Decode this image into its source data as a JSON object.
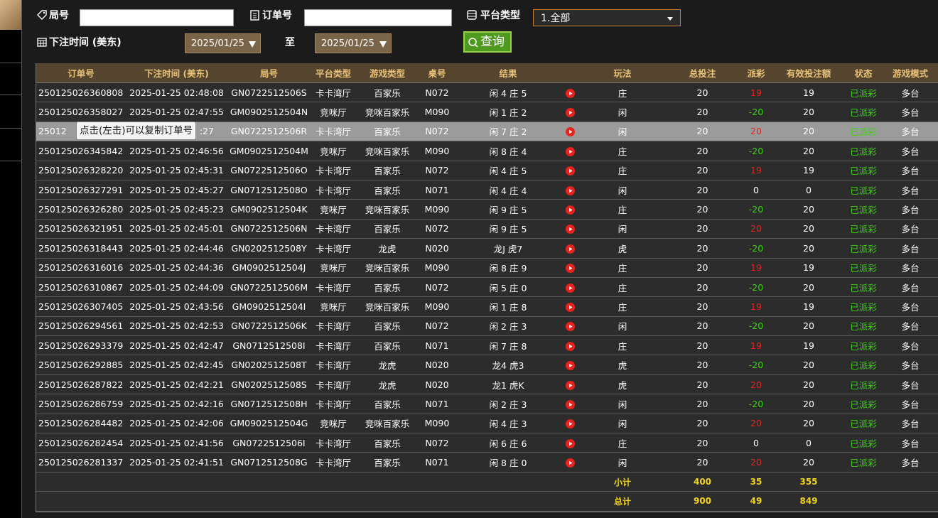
{
  "filters": {
    "round_label": "局号",
    "order_label": "订单号",
    "platform_label": "平台类型",
    "platform_value": "1.全部",
    "time_label": "下注时间 (美东)",
    "date_from": "2025/01/25",
    "to_label": "至",
    "date_to": "2025/01/25",
    "query_button": "查询"
  },
  "table": {
    "columns": [
      "订单号",
      "下注时间 (美东)",
      "局号",
      "平台类型",
      "游戏类型",
      "桌号",
      "结果",
      "玩法",
      "总投注",
      "派彩",
      "有效投注额",
      "状态",
      "游戏模式"
    ],
    "rows": [
      [
        "250125026360808",
        "2025-01-25 02:48:08",
        "GN0722512506S",
        "卡卡湾厅",
        "百家乐",
        "N072",
        "闲 4 庄 5",
        "庄",
        20,
        19,
        19,
        "已派彩",
        "多台"
      ],
      [
        "250125026358027",
        "2025-01-25 02:47:55",
        "GM0902512504N",
        "竞咪厅",
        "竞咪百家乐",
        "M090",
        "闲 1 庄 2",
        "闲",
        20,
        -20,
        20,
        "已派彩",
        "多台"
      ],
      [
        "25012",
        ":27",
        "GN0722512506R",
        "卡卡湾厅",
        "百家乐",
        "N072",
        "闲 7 庄 2",
        "闲",
        20,
        20,
        20,
        "已派彩",
        "多台"
      ],
      [
        "250125026345842",
        "2025-01-25 02:46:56",
        "GM0902512504M",
        "竞咪厅",
        "竞咪百家乐",
        "M090",
        "闲 8 庄 4",
        "庄",
        20,
        -20,
        20,
        "已派彩",
        "多台"
      ],
      [
        "250125026328220",
        "2025-01-25 02:45:31",
        "GN0722512506O",
        "卡卡湾厅",
        "百家乐",
        "N072",
        "闲 4 庄 5",
        "庄",
        20,
        19,
        19,
        "已派彩",
        "多台"
      ],
      [
        "250125026327291",
        "2025-01-25 02:45:27",
        "GN0712512508O",
        "卡卡湾厅",
        "百家乐",
        "N071",
        "闲 4 庄 4",
        "闲",
        20,
        0,
        0,
        "已派彩",
        "多台"
      ],
      [
        "250125026326280",
        "2025-01-25 02:45:23",
        "GM0902512504K",
        "竞咪厅",
        "竞咪百家乐",
        "M090",
        "闲 9 庄 5",
        "庄",
        20,
        -20,
        20,
        "已派彩",
        "多台"
      ],
      [
        "250125026321951",
        "2025-01-25 02:45:01",
        "GN0722512506N",
        "卡卡湾厅",
        "百家乐",
        "N072",
        "闲 9 庄 5",
        "闲",
        20,
        20,
        20,
        "已派彩",
        "多台"
      ],
      [
        "250125026318443",
        "2025-01-25 02:44:46",
        "GN0202512508Y",
        "卡卡湾厅",
        "龙虎",
        "N020",
        "龙J 虎7",
        "虎",
        20,
        -20,
        20,
        "已派彩",
        "多台"
      ],
      [
        "250125026316016",
        "2025-01-25 02:44:36",
        "GM0902512504J",
        "竞咪厅",
        "竞咪百家乐",
        "M090",
        "闲 8 庄 9",
        "庄",
        20,
        19,
        19,
        "已派彩",
        "多台"
      ],
      [
        "250125026310867",
        "2025-01-25 02:44:09",
        "GN0722512506M",
        "卡卡湾厅",
        "百家乐",
        "N072",
        "闲 5 庄 0",
        "庄",
        20,
        -20,
        20,
        "已派彩",
        "多台"
      ],
      [
        "250125026307405",
        "2025-01-25 02:43:56",
        "GM0902512504I",
        "竞咪厅",
        "竞咪百家乐",
        "M090",
        "闲 1 庄 8",
        "庄",
        20,
        19,
        19,
        "已派彩",
        "多台"
      ],
      [
        "250125026294561",
        "2025-01-25 02:42:53",
        "GN0722512506K",
        "卡卡湾厅",
        "百家乐",
        "N072",
        "闲 2 庄 3",
        "闲",
        20,
        -20,
        20,
        "已派彩",
        "多台"
      ],
      [
        "250125026293379",
        "2025-01-25 02:42:47",
        "GN0712512508I",
        "卡卡湾厅",
        "百家乐",
        "N071",
        "闲 7 庄 8",
        "庄",
        20,
        19,
        19,
        "已派彩",
        "多台"
      ],
      [
        "250125026292885",
        "2025-01-25 02:42:45",
        "GN0202512508T",
        "卡卡湾厅",
        "龙虎",
        "N020",
        "龙4 虎3",
        "虎",
        20,
        -20,
        20,
        "已派彩",
        "多台"
      ],
      [
        "250125026287822",
        "2025-01-25 02:42:21",
        "GN0202512508S",
        "卡卡湾厅",
        "龙虎",
        "N020",
        "龙1 虎K",
        "虎",
        20,
        20,
        20,
        "已派彩",
        "多台"
      ],
      [
        "250125026286759",
        "2025-01-25 02:42:16",
        "GN0712512508H",
        "卡卡湾厅",
        "百家乐",
        "N071",
        "闲 2 庄 3",
        "闲",
        20,
        -20,
        20,
        "已派彩",
        "多台"
      ],
      [
        "250125026284482",
        "2025-01-25 02:42:06",
        "GM0902512504G",
        "竞咪厅",
        "竞咪百家乐",
        "M090",
        "闲 4 庄 3",
        "闲",
        20,
        20,
        20,
        "已派彩",
        "多台"
      ],
      [
        "250125026282454",
        "2025-01-25 02:41:56",
        "GN0722512506I",
        "卡卡湾厅",
        "百家乐",
        "N072",
        "闲 6 庄 6",
        "庄",
        20,
        0,
        0,
        "已派彩",
        "多台"
      ],
      [
        "250125026281337",
        "2025-01-25 02:41:51",
        "GN0712512508G",
        "卡卡湾厅",
        "百家乐",
        "N071",
        "闲 8 庄 0",
        "闲",
        20,
        20,
        20,
        "已派彩",
        "多台"
      ]
    ],
    "summary": [
      {
        "label": "小计",
        "total_bet": 400,
        "payout": 35,
        "valid_bet": 355
      },
      {
        "label": "总计",
        "total_bet": 900,
        "payout": 49,
        "valid_bet": 849
      }
    ],
    "tooltip": "点击(左击)可以复制订单号"
  }
}
